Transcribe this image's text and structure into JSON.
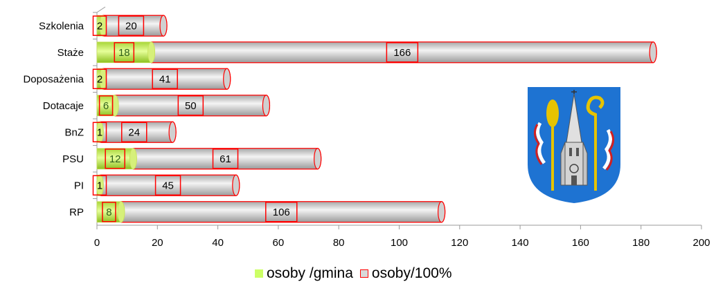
{
  "chart_data": {
    "type": "bar",
    "orientation": "horizontal",
    "stacked": true,
    "categories": [
      "Szkolenia",
      "Staże",
      "Doposażenia",
      "Dotacaje",
      "BnZ",
      "PSU",
      "PI",
      "RP"
    ],
    "series": [
      {
        "name": "osoby /gmina",
        "values": [
          2,
          18,
          2,
          6,
          1,
          12,
          1,
          8
        ],
        "color": "#ccff66"
      },
      {
        "name": "osoby/100%",
        "values": [
          20,
          166,
          41,
          50,
          24,
          61,
          45,
          106
        ],
        "color": "#d9d9d9",
        "border_color": "#ff0000"
      }
    ],
    "xlim": [
      0,
      200
    ],
    "xticks": [
      "0",
      "20",
      "40",
      "60",
      "80",
      "100",
      "120",
      "140",
      "160",
      "180",
      "200"
    ],
    "legend_position": "bottom",
    "grid": false
  },
  "emblem": {
    "icon": "coat-of-arms-icon",
    "colors": {
      "field": "#1e73d2",
      "gold": "#e6c300",
      "silver": "#cfcfcf",
      "red": "#d22020"
    }
  }
}
